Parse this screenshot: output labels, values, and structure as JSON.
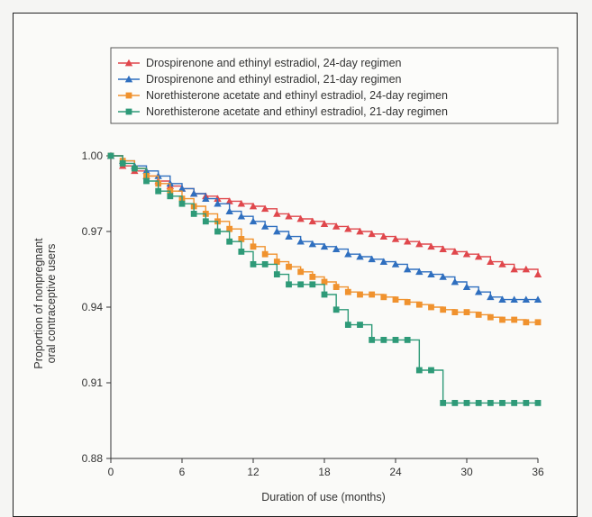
{
  "chart_data": {
    "type": "line",
    "xlabel": "Duration of use (months)",
    "ylabel_lines": [
      "Proportion of nonpregnant",
      "oral contraceptive users"
    ],
    "xlim": [
      0,
      36
    ],
    "ylim": [
      0.88,
      1.0
    ],
    "x_ticks": [
      0,
      6,
      12,
      18,
      24,
      30,
      36
    ],
    "y_ticks": [
      0.88,
      0.91,
      0.94,
      0.97,
      1.0
    ],
    "y_tick_labels": [
      "0.88",
      "0.91",
      "0.94",
      "0.97",
      "1.00"
    ],
    "grid": false,
    "legend_position": "top-center",
    "x": [
      0,
      1,
      2,
      3,
      4,
      5,
      6,
      7,
      8,
      9,
      10,
      11,
      12,
      13,
      14,
      15,
      16,
      17,
      18,
      19,
      20,
      21,
      22,
      23,
      24,
      25,
      26,
      27,
      28,
      29,
      30,
      31,
      32,
      33,
      34,
      35,
      36
    ],
    "series": [
      {
        "name": "Drospirenone and ethinyl estradiol, 24-day regimen",
        "color": "#e0474c",
        "marker": "triangle",
        "values": [
          1.0,
          0.996,
          0.994,
          0.992,
          0.99,
          0.988,
          0.987,
          0.985,
          0.984,
          0.983,
          0.982,
          0.981,
          0.98,
          0.979,
          0.977,
          0.976,
          0.975,
          0.974,
          0.973,
          0.972,
          0.971,
          0.97,
          0.969,
          0.968,
          0.967,
          0.966,
          0.965,
          0.964,
          0.963,
          0.962,
          0.961,
          0.96,
          0.958,
          0.957,
          0.955,
          0.955,
          0.953
        ]
      },
      {
        "name": "Drospirenone and ethinyl estradiol, 21-day regimen",
        "color": "#2f6fbf",
        "marker": "triangle",
        "values": [
          1.0,
          0.998,
          0.996,
          0.994,
          0.992,
          0.989,
          0.987,
          0.985,
          0.983,
          0.981,
          0.978,
          0.976,
          0.974,
          0.972,
          0.97,
          0.968,
          0.966,
          0.965,
          0.964,
          0.963,
          0.961,
          0.96,
          0.959,
          0.958,
          0.957,
          0.955,
          0.954,
          0.953,
          0.952,
          0.95,
          0.948,
          0.946,
          0.944,
          0.943,
          0.943,
          0.943,
          0.943
        ]
      },
      {
        "name": "Norethisterone acetate and ethinyl estradiol, 24-day regimen",
        "color": "#f0922e",
        "marker": "square",
        "values": [
          1.0,
          0.998,
          0.995,
          0.992,
          0.989,
          0.986,
          0.983,
          0.98,
          0.977,
          0.974,
          0.971,
          0.967,
          0.964,
          0.961,
          0.958,
          0.956,
          0.954,
          0.952,
          0.95,
          0.948,
          0.946,
          0.945,
          0.945,
          0.944,
          0.943,
          0.942,
          0.941,
          0.94,
          0.939,
          0.938,
          0.938,
          0.937,
          0.936,
          0.935,
          0.935,
          0.934,
          0.934
        ]
      },
      {
        "name": "Norethisterone acetate and ethinyl estradiol, 21-day regimen",
        "color": "#2e9a78",
        "marker": "square",
        "values": [
          1.0,
          0.997,
          0.995,
          0.99,
          0.986,
          0.984,
          0.981,
          0.977,
          0.974,
          0.97,
          0.966,
          0.962,
          0.957,
          0.957,
          0.953,
          0.949,
          0.949,
          0.949,
          0.945,
          0.939,
          0.933,
          0.933,
          0.927,
          0.927,
          0.927,
          0.927,
          0.915,
          0.915,
          0.902,
          0.902,
          0.902,
          0.902,
          0.902,
          0.902,
          0.902,
          0.902,
          0.902
        ]
      }
    ]
  }
}
